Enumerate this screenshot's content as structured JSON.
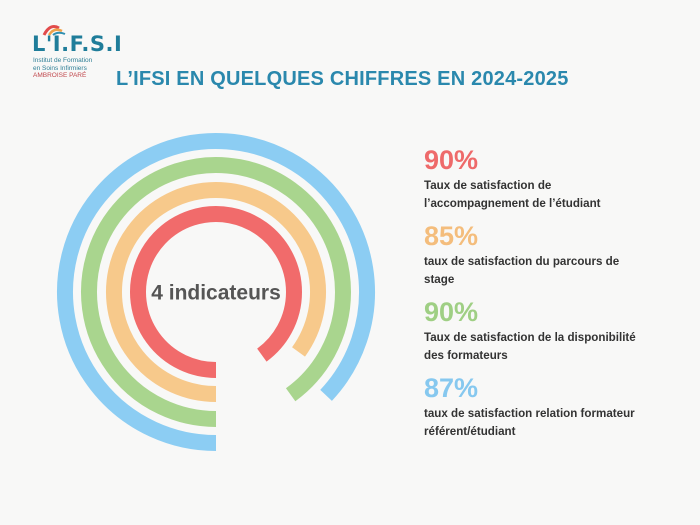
{
  "header": {
    "logo_text": "L'I.F.S.I",
    "logo_sub": [
      "Institut de Formation",
      "en Soins Infirmiers",
      "AMBROISE PARÉ"
    ],
    "title": "L’IFSI EN QUELQUES CHIFFRES EN 2024-2025"
  },
  "chart_data": {
    "type": "radial-bar",
    "center_label": "4 indicateurs",
    "unit": "%",
    "series": [
      {
        "value": 90,
        "label": "Taux de satisfaction de l’accompagnement de l’étudiant",
        "color": "#f16b6b"
      },
      {
        "value": 85,
        "label": "taux de satisfaction du parcours de stage",
        "color": "#f7c98b"
      },
      {
        "value": 90,
        "label": "Taux de satisfaction de la disponibilité des formateurs",
        "color": "#a9d58e"
      },
      {
        "value": 87,
        "label": "taux de satisfaction relation formateur référent/étudiant",
        "color": "#8ccdf3"
      }
    ],
    "values_display": [
      "90%",
      "85%",
      "90%",
      "87%"
    ],
    "descriptions": [
      [
        "Taux de satisfaction de",
        "l’accompagnement de l’étudiant"
      ],
      [
        "taux de satisfaction du parcours de",
        "stage"
      ],
      [
        "Taux de satisfaction de la disponibilité",
        "des formateurs"
      ],
      [
        "taux de satisfaction relation formateur",
        "référent/étudiant"
      ]
    ]
  }
}
